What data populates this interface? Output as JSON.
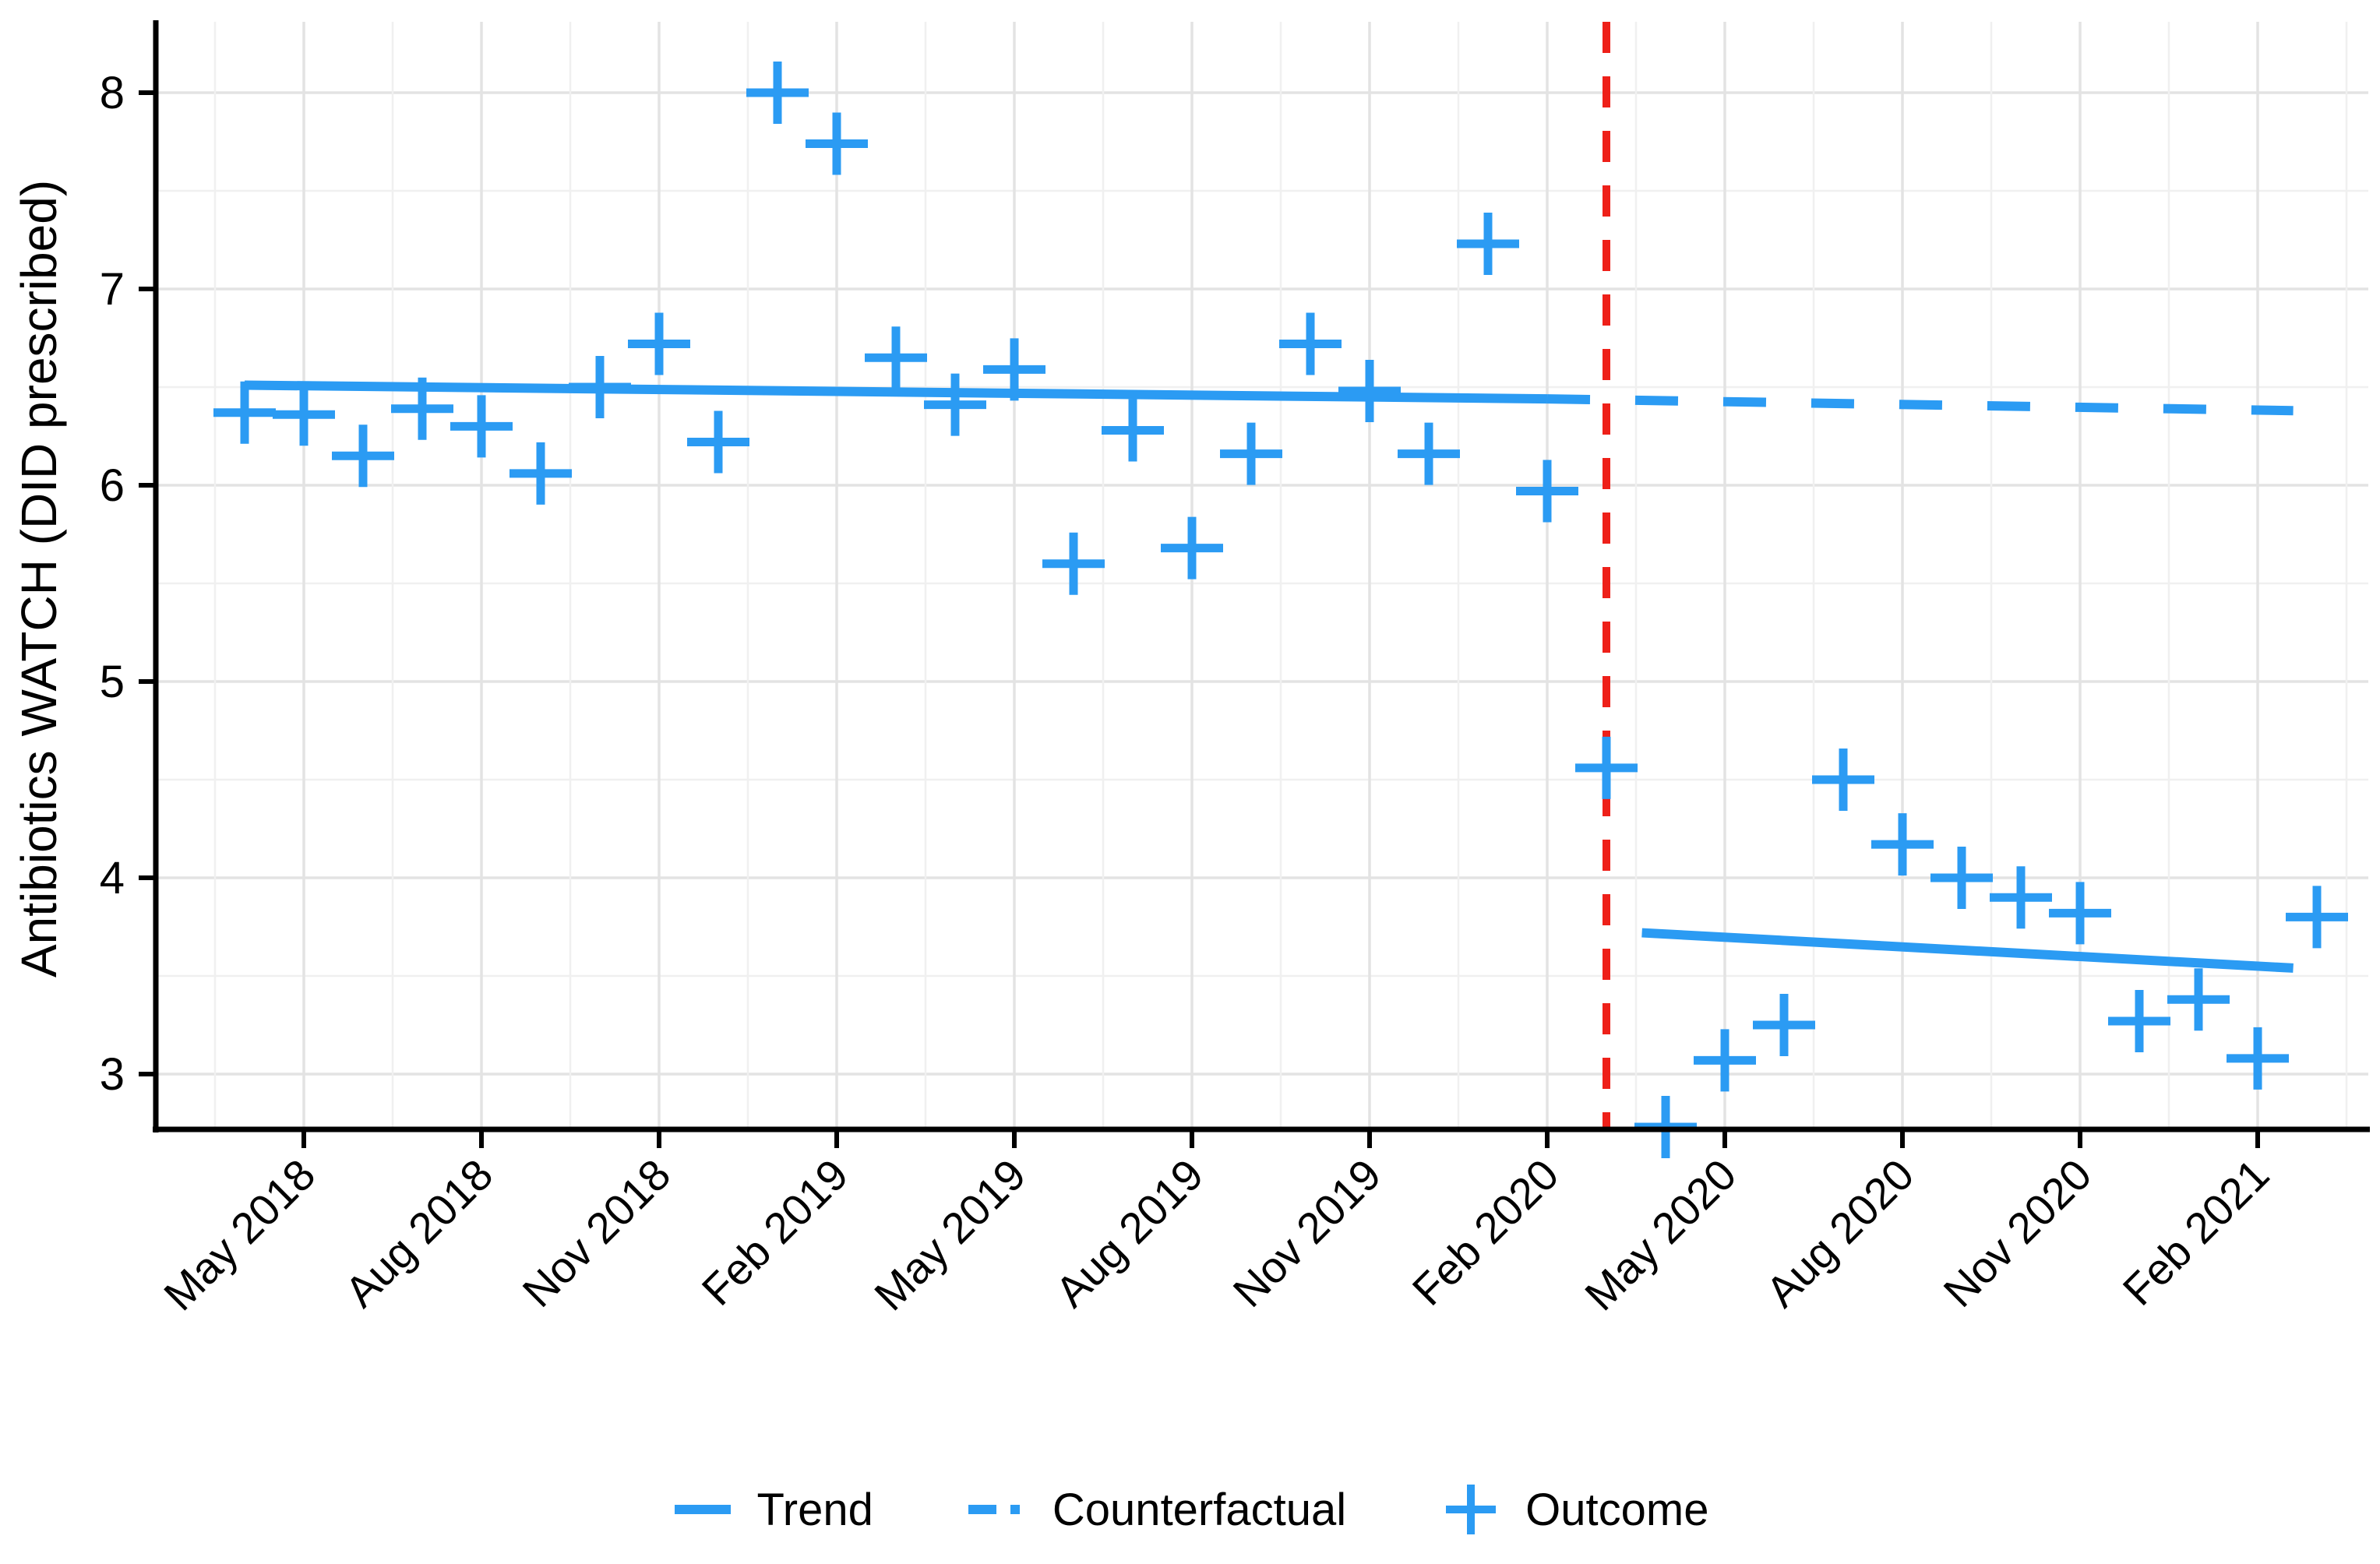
{
  "chart_data": {
    "type": "scatter",
    "title": "",
    "xlabel": "",
    "ylabel": "Antibiotics WATCH (DID prescribed)",
    "grid": true,
    "legend_position": "bottom-center",
    "y_ticks": [
      3,
      4,
      5,
      6,
      7,
      8
    ],
    "y_minor_ticks": [
      3.5,
      4.5,
      5.5,
      6.5,
      7.5
    ],
    "ylim": [
      2.6,
      8.36
    ],
    "x_tick_labels": [
      "May 2018",
      "Aug 2018",
      "Nov 2018",
      "Feb 2019",
      "May 2019",
      "Aug 2019",
      "Nov 2019",
      "Feb 2020",
      "May 2020",
      "Aug 2020",
      "Nov 2020",
      "Feb 2021"
    ],
    "x_tick_month_indices": [
      1,
      4,
      7,
      10,
      13,
      16,
      19,
      22,
      25,
      28,
      31,
      34
    ],
    "months": [
      "Apr 2018",
      "May 2018",
      "Jun 2018",
      "Jul 2018",
      "Aug 2018",
      "Sep 2018",
      "Oct 2018",
      "Nov 2018",
      "Dec 2018",
      "Jan 2019",
      "Feb 2019",
      "Mar 2019",
      "Apr 2019",
      "May 2019",
      "Jun 2019",
      "Jul 2019",
      "Aug 2019",
      "Sep 2019",
      "Oct 2019",
      "Nov 2019",
      "Dec 2019",
      "Jan 2020",
      "Feb 2020",
      "Mar 2020",
      "Apr 2020",
      "May 2020",
      "Jun 2020",
      "Jul 2020",
      "Aug 2020",
      "Sep 2020",
      "Oct 2020",
      "Nov 2020",
      "Dec 2020",
      "Jan 2021",
      "Feb 2021",
      "Mar 2021"
    ],
    "series": [
      {
        "name": "Outcome",
        "style": "plus-markers",
        "values": [
          6.37,
          6.36,
          6.15,
          6.39,
          6.3,
          6.06,
          6.5,
          6.72,
          6.22,
          8.0,
          7.74,
          6.65,
          6.41,
          6.59,
          5.6,
          6.28,
          5.68,
          6.16,
          6.72,
          6.48,
          6.16,
          7.23,
          5.97,
          4.56,
          2.73,
          3.07,
          3.25,
          4.5,
          4.17,
          4.0,
          3.9,
          3.82,
          3.27,
          3.38,
          3.08,
          3.8
        ]
      },
      {
        "name": "Trend",
        "style": "solid-line",
        "segments": [
          {
            "x": [
              0,
              22
            ],
            "y": [
              6.51,
              6.44
            ]
          },
          {
            "x": [
              23.6,
              34.6
            ],
            "y": [
              3.72,
              3.54
            ]
          }
        ]
      },
      {
        "name": "Counterfactual",
        "style": "dashed-line",
        "segments": [
          {
            "x": [
              22,
              34.6
            ],
            "y": [
              6.44,
              6.38
            ]
          }
        ]
      }
    ],
    "intervention_line": {
      "month_index": 23,
      "style": "dashed-vertical"
    },
    "legend": [
      {
        "label": "Trend",
        "glyph": "solid-line"
      },
      {
        "label": "Counterfactual",
        "glyph": "dashed-line"
      },
      {
        "label": "Outcome",
        "glyph": "plus"
      }
    ],
    "colors": {
      "series_blue": "#2B9BF3",
      "intervention_red": "#EE2019",
      "grid_major": "#E3E3E3",
      "grid_minor": "#F0F0F0",
      "axis": "#000000",
      "text": "#000000",
      "background": "#FFFFFF"
    }
  }
}
